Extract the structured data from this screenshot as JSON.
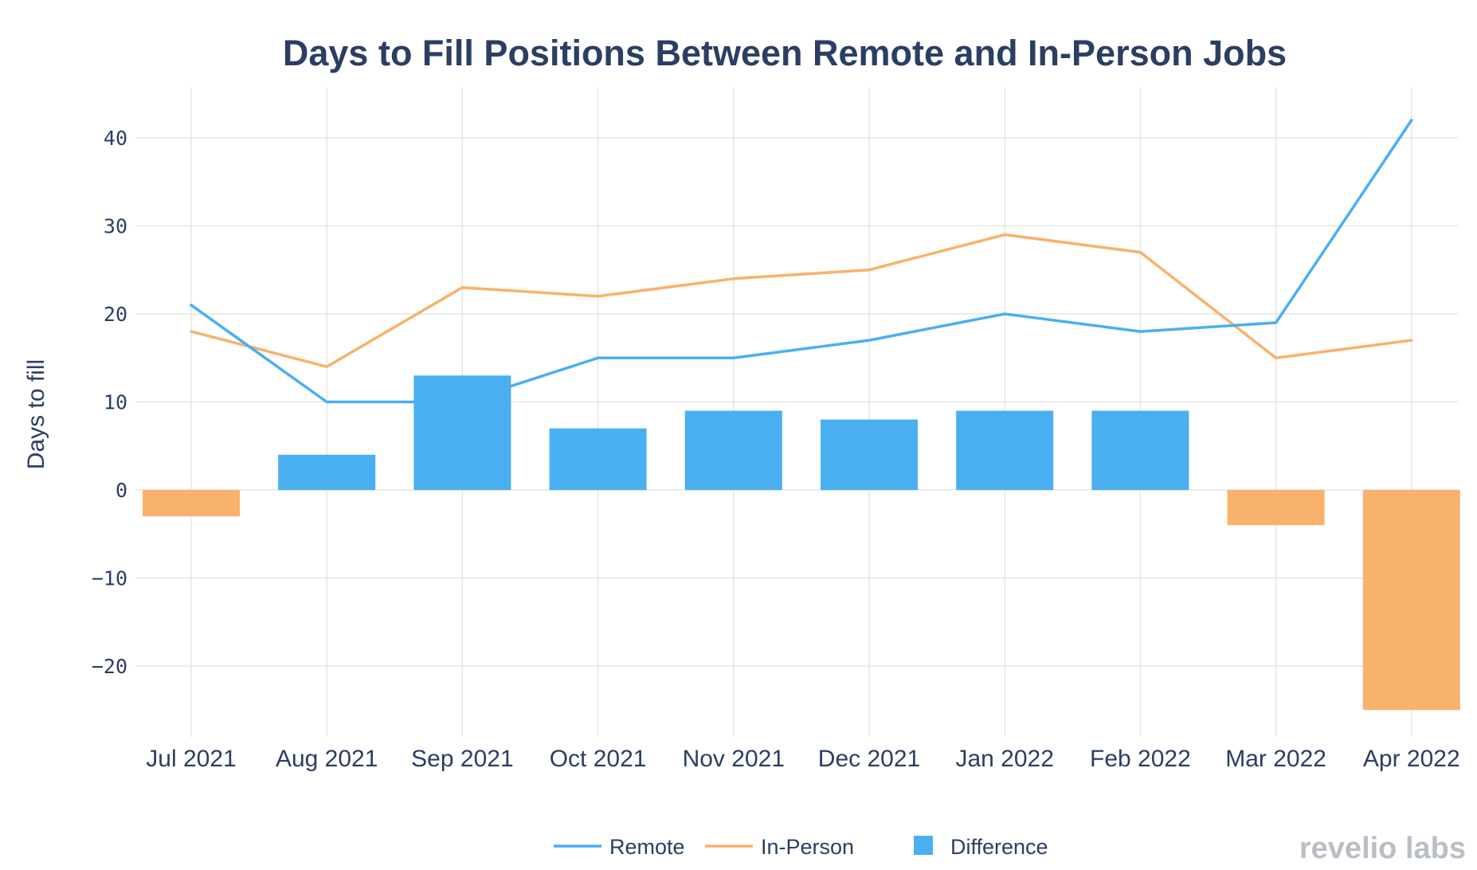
{
  "chart_data": {
    "type": "bar+line",
    "title": "Days to Fill Positions Between Remote and In-Person Jobs",
    "xlabel": "",
    "ylabel": "Days to fill",
    "ylim": [
      -28,
      46
    ],
    "yticks": [
      40,
      30,
      20,
      10,
      0,
      -10,
      -20
    ],
    "ytick_labels": [
      "40",
      "30",
      "20",
      "10",
      "0",
      "−10",
      "−20"
    ],
    "grid": true,
    "categories": [
      "Jul 2021",
      "Aug 2021",
      "Sep 2021",
      "Oct 2021",
      "Nov 2021",
      "Dec 2021",
      "Jan 2022",
      "Feb 2022",
      "Mar 2022",
      "Apr 2022"
    ],
    "series": [
      {
        "name": "Remote",
        "kind": "line",
        "color": "#4aaff1",
        "values": [
          21,
          10,
          10,
          15,
          15,
          17,
          20,
          18,
          19,
          42
        ]
      },
      {
        "name": "In-Person",
        "kind": "line",
        "color": "#f8b26b",
        "values": [
          18,
          14,
          23,
          22,
          24,
          25,
          29,
          27,
          15,
          17
        ]
      },
      {
        "name": "Difference",
        "kind": "bar",
        "color": "#4aaff1",
        "negative_color": "#f8b26b",
        "values": [
          -3,
          4,
          13,
          7,
          9,
          8,
          9,
          9,
          -4,
          -25
        ]
      }
    ],
    "legend": {
      "position": "bottom-center",
      "items": [
        "Remote",
        "In-Person",
        "Difference"
      ]
    }
  },
  "brand": {
    "text": "revelio labs"
  }
}
